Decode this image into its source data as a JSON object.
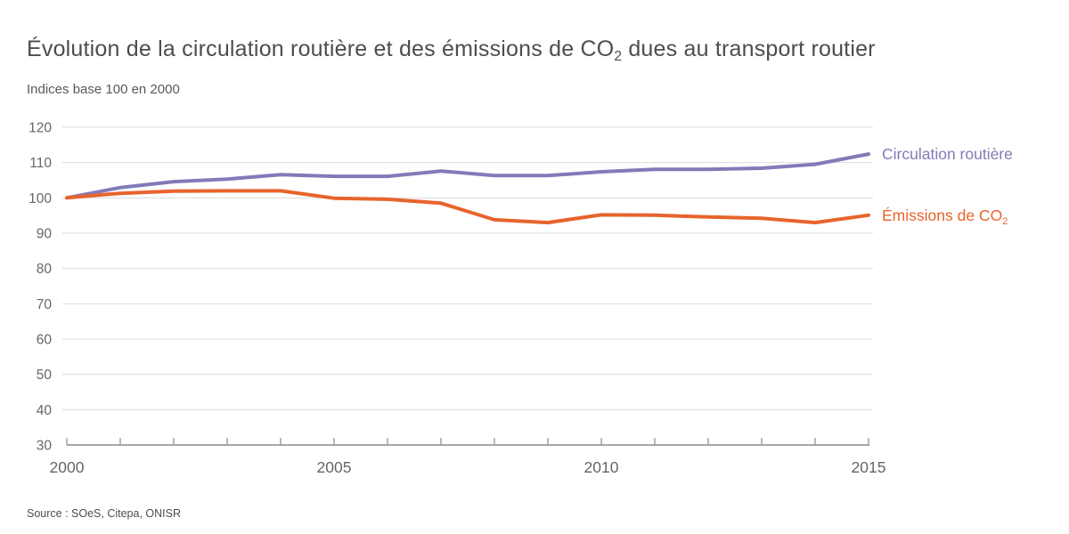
{
  "title": {
    "prefix": "Évolution de la circulation routière et des émissions de CO",
    "subscript": "2",
    "suffix": " dues au transport routier"
  },
  "subtitle": "Indices base 100 en 2000",
  "source": "Source : SOeS, Citepa, ONISR",
  "legend": {
    "circulation": {
      "label": "Circulation routière"
    },
    "emissions": {
      "label_prefix": "Émissions de CO",
      "label_subscript": "2"
    }
  },
  "colors": {
    "circulation_line": "#837AB8",
    "emissions_line": "#E7642C",
    "grid": "#DCDCDC",
    "axis": "#8C8C8C",
    "tick_label": "#666666",
    "title_text": "#4D4D4D"
  },
  "chart_data": {
    "type": "line",
    "title": "Évolution de la circulation routière et des émissions de CO2 dues au transport routier",
    "subtitle": "Indices base 100 en 2000",
    "x": [
      2000,
      2001,
      2002,
      2003,
      2004,
      2005,
      2006,
      2007,
      2008,
      2009,
      2010,
      2011,
      2012,
      2013,
      2014,
      2015
    ],
    "x_labeled_ticks": [
      "2000",
      "2005",
      "2010",
      "2015"
    ],
    "ylim": [
      30,
      120
    ],
    "ytick_step": 10,
    "ytick_labels": [
      "30",
      "40",
      "50",
      "60",
      "70",
      "80",
      "90",
      "100",
      "110",
      "120"
    ],
    "grid": "horizontal gridlines on",
    "legend_position": "right of line ends",
    "series": [
      {
        "name": "Circulation routière",
        "color_key": "circulation_line",
        "values": [
          100,
          102.9,
          104.6,
          105.3,
          106.6,
          106.1,
          106.1,
          107.6,
          106.3,
          106.3,
          107.4,
          108.1,
          108.1,
          108.4,
          109.5,
          112.4
        ]
      },
      {
        "name": "Émissions de CO2",
        "color_key": "emissions_line",
        "values": [
          100,
          101.3,
          101.9,
          102,
          102,
          99.9,
          99.6,
          98.5,
          93.8,
          93,
          95.2,
          95.1,
          94.6,
          94.2,
          93,
          95.1
        ]
      }
    ]
  }
}
